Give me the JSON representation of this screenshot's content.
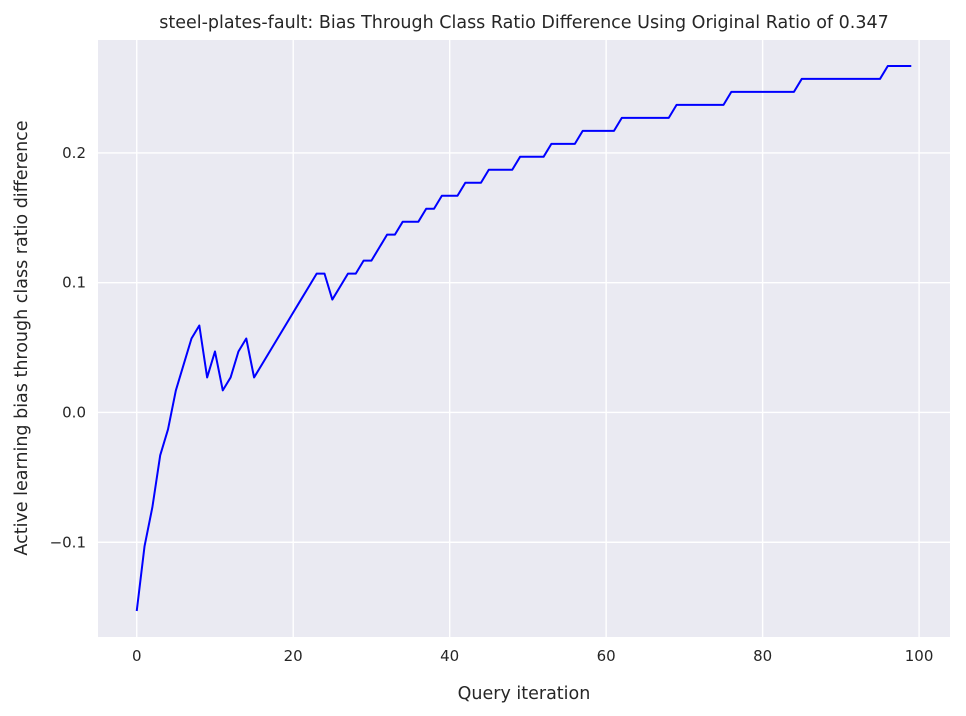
{
  "chart_data": {
    "type": "line",
    "title": "steel-plates-fault: Bias Through Class Ratio Difference Using Original Ratio of 0.347",
    "xlabel": "Query iteration",
    "ylabel": "Active learning bias through class ratio difference",
    "xlim": [
      -4.95,
      103.95
    ],
    "ylim": [
      -0.173,
      0.287
    ],
    "xticks": [
      0,
      20,
      40,
      60,
      80,
      100
    ],
    "xtick_labels": [
      "0",
      "20",
      "40",
      "60",
      "80",
      "100"
    ],
    "yticks": [
      -0.1,
      0.0,
      0.1,
      0.2
    ],
    "ytick_labels": [
      "−0.1",
      "0.0",
      "0.1",
      "0.2"
    ],
    "grid": true,
    "colors": {
      "background": "#eaeaf2",
      "grid": "#ffffff",
      "line": "#0000ff",
      "text": "#262626"
    },
    "series": [
      {
        "color": "#0000ff",
        "x": [
          0,
          1,
          2,
          3,
          4,
          5,
          6,
          7,
          8,
          9,
          10,
          11,
          12,
          13,
          14,
          15,
          16,
          17,
          18,
          19,
          20,
          21,
          22,
          23,
          24,
          25,
          26,
          27,
          28,
          29,
          30,
          31,
          32,
          33,
          34,
          35,
          36,
          37,
          38,
          39,
          40,
          41,
          42,
          43,
          44,
          45,
          46,
          47,
          48,
          49,
          50,
          51,
          52,
          53,
          54,
          55,
          56,
          57,
          58,
          59,
          60,
          61,
          62,
          63,
          64,
          65,
          66,
          67,
          68,
          69,
          70,
          71,
          72,
          73,
          74,
          75,
          76,
          77,
          78,
          79,
          80,
          81,
          82,
          83,
          84,
          85,
          86,
          87,
          88,
          89,
          90,
          91,
          92,
          93,
          94,
          95,
          96,
          97,
          98,
          99
        ],
        "y": [
          -0.153,
          -0.103,
          -0.073,
          -0.033,
          -0.013,
          0.017,
          0.037,
          0.057,
          0.067,
          0.027,
          0.047,
          0.017,
          0.027,
          0.047,
          0.057,
          0.027,
          0.037,
          0.047,
          0.057,
          0.067,
          0.077,
          0.087,
          0.097,
          0.107,
          0.107,
          0.087,
          0.097,
          0.107,
          0.107,
          0.117,
          0.117,
          0.127,
          0.137,
          0.137,
          0.147,
          0.147,
          0.147,
          0.157,
          0.157,
          0.167,
          0.167,
          0.167,
          0.177,
          0.177,
          0.177,
          0.187,
          0.187,
          0.187,
          0.187,
          0.197,
          0.197,
          0.197,
          0.197,
          0.207,
          0.207,
          0.207,
          0.207,
          0.217,
          0.217,
          0.217,
          0.217,
          0.217,
          0.227,
          0.227,
          0.227,
          0.227,
          0.227,
          0.227,
          0.227,
          0.237,
          0.237,
          0.237,
          0.237,
          0.237,
          0.237,
          0.237,
          0.247,
          0.247,
          0.247,
          0.247,
          0.247,
          0.247,
          0.247,
          0.247,
          0.247,
          0.257,
          0.257,
          0.257,
          0.257,
          0.257,
          0.257,
          0.257,
          0.257,
          0.257,
          0.257,
          0.257,
          0.267,
          0.267,
          0.267,
          0.267
        ]
      }
    ]
  }
}
